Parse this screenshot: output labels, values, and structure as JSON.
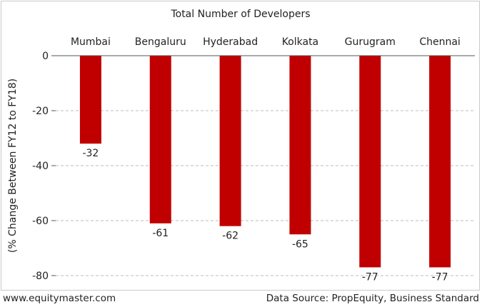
{
  "chart_data": {
    "type": "bar",
    "title": "Total Number of Developers",
    "ylabel": "(% Change Between FY12 to FY18)",
    "xlabel": "",
    "categories": [
      "Mumbai",
      "Bengaluru",
      "Hyderabad",
      "Kolkata",
      "Gurugram",
      "Chennai"
    ],
    "values": [
      -32,
      -61,
      -62,
      -65,
      -77,
      -77
    ],
    "data_labels": [
      "-32",
      "-61",
      "-62",
      "-65",
      "-77",
      "-77"
    ],
    "ylim": [
      -80,
      0
    ],
    "yticks": [
      0,
      -20,
      -40,
      -60,
      -80
    ],
    "ytick_labels": [
      "0",
      "-20",
      "-40",
      "-60",
      "-80"
    ],
    "grid": true,
    "category_axis": "top",
    "bar_color": "#c00000"
  },
  "footer": {
    "source_site": "www.equitymaster.com",
    "data_source": "Data Source: PropEquity, Business Standard"
  }
}
